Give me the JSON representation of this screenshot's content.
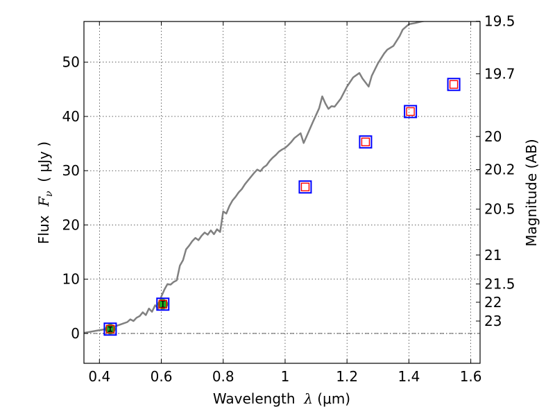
{
  "chart_data": {
    "type": "scatter",
    "xlabel": {
      "prefix": "Wavelength  ",
      "symbol": "λ",
      "unit": " (μm)"
    },
    "ylabel": {
      "prefix": "Flux  ",
      "symbol": "F",
      "subscript": "ν",
      "unit": "  ( μJy )"
    },
    "y2label": "Magnitude (AB)",
    "xlim": [
      0.35,
      1.63
    ],
    "ylim": [
      -5.5,
      57.5
    ],
    "grid": true,
    "x_ticks": [
      {
        "v": 0.4,
        "label": "0.4"
      },
      {
        "v": 0.6,
        "label": "0.6"
      },
      {
        "v": 0.8,
        "label": "0.8"
      },
      {
        "v": 1.0,
        "label": "1"
      },
      {
        "v": 1.2,
        "label": "1.2"
      },
      {
        "v": 1.4,
        "label": "1.4"
      },
      {
        "v": 1.6,
        "label": "1.6"
      }
    ],
    "y_ticks": [
      {
        "v": 0,
        "label": "0"
      },
      {
        "v": 10,
        "label": "10"
      },
      {
        "v": 20,
        "label": "20"
      },
      {
        "v": 30,
        "label": "30"
      },
      {
        "v": 40,
        "label": "40"
      },
      {
        "v": 50,
        "label": "50"
      }
    ],
    "mag_ticks": [
      {
        "mag": 19.5,
        "label": "19.5"
      },
      {
        "mag": 19.7,
        "label": "19.7"
      },
      {
        "mag": 20,
        "label": "20"
      },
      {
        "mag": 20.2,
        "label": "20.2"
      },
      {
        "mag": 20.5,
        "label": "20.5"
      },
      {
        "mag": 21,
        "label": "21"
      },
      {
        "mag": 21.5,
        "label": "21.5"
      },
      {
        "mag": 22,
        "label": "22"
      },
      {
        "mag": 23,
        "label": "23"
      }
    ],
    "spectrum": {
      "color": "#808080",
      "x": [
        0.35,
        0.37,
        0.39,
        0.41,
        0.43,
        0.45,
        0.47,
        0.49,
        0.5,
        0.51,
        0.52,
        0.53,
        0.54,
        0.55,
        0.56,
        0.57,
        0.58,
        0.59,
        0.6,
        0.61,
        0.62,
        0.63,
        0.64,
        0.65,
        0.66,
        0.67,
        0.68,
        0.69,
        0.7,
        0.71,
        0.72,
        0.73,
        0.74,
        0.75,
        0.76,
        0.77,
        0.78,
        0.79,
        0.8,
        0.81,
        0.82,
        0.83,
        0.84,
        0.85,
        0.86,
        0.87,
        0.88,
        0.89,
        0.9,
        0.91,
        0.92,
        0.93,
        0.94,
        0.95,
        0.96,
        0.97,
        0.98,
        0.99,
        1.0,
        1.01,
        1.02,
        1.03,
        1.05,
        1.06,
        1.07,
        1.09,
        1.11,
        1.12,
        1.13,
        1.14,
        1.15,
        1.16,
        1.18,
        1.2,
        1.22,
        1.24,
        1.25,
        1.27,
        1.28,
        1.3,
        1.32,
        1.33,
        1.35,
        1.37,
        1.38,
        1.4,
        1.42,
        1.44,
        1.46
      ],
      "y": [
        0.1,
        0.3,
        0.5,
        0.7,
        0.9,
        1.3,
        1.7,
        2.1,
        2.6,
        2.3,
        2.9,
        3.2,
        3.9,
        3.4,
        4.6,
        4.0,
        5.2,
        4.6,
        6.8,
        8.1,
        9.1,
        9.0,
        9.5,
        9.8,
        12.5,
        13.5,
        15.5,
        16.2,
        17.0,
        17.6,
        17.2,
        18.0,
        18.6,
        18.2,
        19.0,
        18.3,
        19.2,
        18.7,
        22.5,
        22.1,
        23.5,
        24.5,
        25.2,
        26.0,
        26.6,
        27.5,
        28.2,
        28.9,
        29.6,
        30.2,
        29.9,
        30.6,
        31.0,
        31.8,
        32.4,
        32.9,
        33.5,
        33.9,
        34.2,
        34.7,
        35.3,
        36.0,
        36.9,
        35.1,
        36.4,
        39.0,
        41.5,
        43.7,
        42.4,
        41.4,
        41.9,
        41.8,
        43.3,
        45.5,
        47.2,
        48.0,
        47.0,
        45.5,
        47.5,
        49.8,
        51.6,
        52.3,
        53.0,
        54.8,
        56.0,
        57.0,
        57.2,
        57.5,
        57.7
      ]
    },
    "model_points": {
      "outer_color": "#0000ff",
      "inner_color": "#ff0000",
      "points": [
        {
          "x": 0.435,
          "y": 0.8
        },
        {
          "x": 0.605,
          "y": 5.4
        },
        {
          "x": 1.065,
          "y": 27.0
        },
        {
          "x": 1.26,
          "y": 35.3
        },
        {
          "x": 1.405,
          "y": 40.9
        },
        {
          "x": 1.545,
          "y": 45.9
        }
      ]
    },
    "observed_points": {
      "color": "#22aa22",
      "points": [
        {
          "x": 0.435,
          "y": 0.8,
          "err": 0.4
        },
        {
          "x": 0.605,
          "y": 5.4,
          "err": 0.6
        }
      ]
    }
  }
}
